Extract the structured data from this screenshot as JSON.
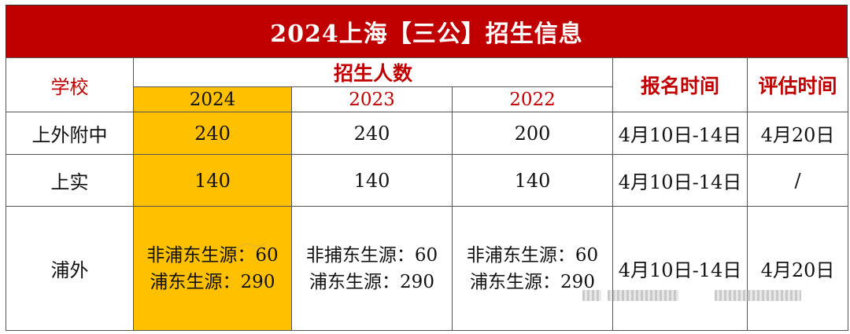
{
  "title": "2024上海【三公】招生信息",
  "colors": {
    "title_bg": "#c00000",
    "header_text": "#c00000",
    "highlight": "#ffc000"
  },
  "header": {
    "school": "学校",
    "enrollment": "招生人数",
    "years": [
      "2024",
      "2023",
      "2022"
    ],
    "register_time": "报名时间",
    "assess_time": "评估时间"
  },
  "rows": [
    {
      "school": "上外附中",
      "y2024": [
        "240"
      ],
      "y2023": [
        "240"
      ],
      "y2022": [
        "200"
      ],
      "register": "4月10日-14日",
      "assess": "4月20日"
    },
    {
      "school": "上实",
      "y2024": [
        "140"
      ],
      "y2023": [
        "140"
      ],
      "y2022": [
        "140"
      ],
      "register": "4月10日-14日",
      "assess": "/"
    },
    {
      "school": "浦外",
      "y2024": [
        "非浦东生源：60",
        "浦东生源：290"
      ],
      "y2023": [
        "非捕东生源：60",
        "浦东生源：290"
      ],
      "y2022": [
        "非浦东生源：60",
        "浦东生源：290"
      ],
      "register": "4月10日-14日",
      "assess": "4月20日"
    }
  ]
}
